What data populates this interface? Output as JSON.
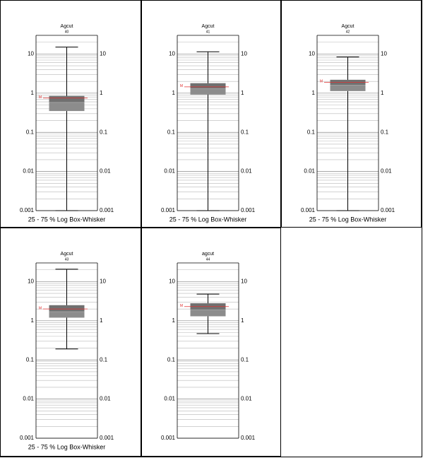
{
  "chart_data": [
    {
      "type": "box",
      "title": "Agcut",
      "subtitle": "40",
      "xlabel": "25 - 75 % Log Box-Whisker",
      "log_y": true,
      "grid": true,
      "minor_grid": true,
      "ylim": [
        0.001,
        30
      ],
      "yticks": [
        0.001,
        0.01,
        0.1,
        1,
        10
      ],
      "box": {
        "whisker_low": 0.001,
        "q1": 0.35,
        "median": 0.58,
        "q3": 0.85,
        "whisker_high": 15,
        "mean": 0.75
      },
      "mean_label": "M",
      "box_color": "#8c8c8c",
      "box_upper_color": "#707070",
      "mean_color": "#e03030"
    },
    {
      "type": "box",
      "title": "Agcut",
      "subtitle": "41",
      "xlabel": "25 - 75 % Log Box-Whisker",
      "log_y": true,
      "grid": true,
      "minor_grid": true,
      "ylim": [
        0.001,
        30
      ],
      "yticks": [
        0.001,
        0.01,
        0.1,
        1,
        10
      ],
      "box": {
        "whisker_low": 0.001,
        "q1": 0.92,
        "median": 1.3,
        "q3": 1.8,
        "whisker_high": 11.4,
        "mean": 1.45
      },
      "mean_label": "M",
      "box_color": "#8c8c8c",
      "box_upper_color": "#707070",
      "mean_color": "#e03030"
    },
    {
      "type": "box",
      "title": "Agcut",
      "subtitle": "42",
      "xlabel": "25 - 75 % Log Box-Whisker",
      "log_y": true,
      "grid": true,
      "minor_grid": true,
      "ylim": [
        0.001,
        30
      ],
      "yticks": [
        0.001,
        0.01,
        0.1,
        1,
        10
      ],
      "box": {
        "whisker_low": 0.001,
        "q1": 1.13,
        "median": 1.6,
        "q3": 2.2,
        "whisker_high": 8.4,
        "mean": 1.9
      },
      "mean_label": "M",
      "box_color": "#8c8c8c",
      "box_upper_color": "#707070",
      "mean_color": "#e03030"
    },
    {
      "type": "box",
      "title": "Agcut",
      "subtitle": "43",
      "xlabel": "25 - 75 % Log Box-Whisker",
      "log_y": true,
      "grid": true,
      "minor_grid": true,
      "ylim": [
        0.001,
        30
      ],
      "yticks": [
        0.001,
        0.01,
        0.1,
        1,
        10
      ],
      "box": {
        "whisker_low": 0.19,
        "q1": 1.2,
        "median": 1.7,
        "q3": 2.5,
        "whisker_high": 20.7,
        "mean": 2.0
      },
      "mean_label": "M",
      "box_color": "#8c8c8c",
      "box_upper_color": "#707070",
      "mean_color": "#e03030"
    },
    {
      "type": "box",
      "title": "agcut",
      "subtitle": "44",
      "xlabel": "",
      "log_y": true,
      "grid": true,
      "minor_grid": true,
      "ylim": [
        0.001,
        30
      ],
      "yticks": [
        0.001,
        0.01,
        0.1,
        1,
        10
      ],
      "box": {
        "whisker_low": 0.47,
        "q1": 1.3,
        "median": 1.9,
        "q3": 2.8,
        "whisker_high": 4.8,
        "mean": 2.3
      },
      "mean_label": "M",
      "box_color": "#8c8c8c",
      "box_upper_color": "#707070",
      "mean_color": "#e03030"
    }
  ]
}
